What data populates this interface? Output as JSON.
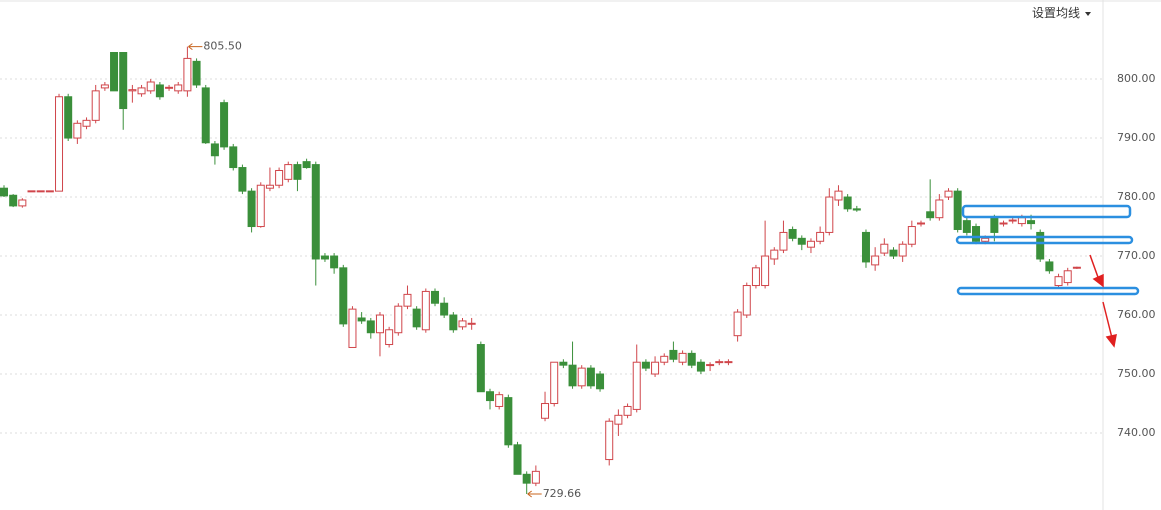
{
  "toolbar": {
    "button": "设置均线"
  },
  "chart_data": {
    "type": "candlestick",
    "open": [
      781.5,
      780.3,
      778.5,
      781,
      781,
      781,
      781,
      797,
      790,
      792,
      793,
      798.5,
      804.5,
      804.5,
      798,
      797.5,
      798,
      799,
      798.5,
      798,
      798,
      803,
      798.5,
      789,
      796,
      788.5,
      785,
      781,
      775,
      781.5,
      782,
      783,
      785.5,
      786,
      785.5,
      770,
      770,
      768,
      754.5,
      759.5,
      759,
      757,
      755,
      757,
      761.5,
      761,
      757.5,
      764,
      762,
      760,
      758,
      758.5,
      755,
      747,
      744.5,
      746,
      738,
      733,
      731.5,
      742.5,
      745,
      752,
      751.5,
      748,
      751,
      750,
      735.5,
      741.5,
      743,
      744,
      752,
      750,
      752,
      754,
      752,
      753.5,
      752,
      751.5,
      752,
      752,
      756.5,
      760,
      765,
      765,
      769.5,
      771,
      774.5,
      773,
      771.5,
      772.5,
      774,
      779.5,
      780,
      778,
      774,
      768.5,
      770.5,
      771,
      770,
      772,
      775.5,
      777.5,
      776.5,
      780,
      781,
      776,
      775,
      772.5,
      776.5,
      775.5,
      776,
      775.5,
      776,
      774,
      769,
      765,
      765.5,
      768
    ],
    "high": [
      782,
      780.5,
      779.8,
      781.1,
      781.1,
      781.1,
      797.5,
      797.5,
      793,
      793.5,
      799,
      799.5,
      804.5,
      804.5,
      799,
      799,
      800,
      799.5,
      799,
      799.5,
      805.5,
      803.5,
      799,
      789.5,
      796.5,
      789,
      785.5,
      781.5,
      782.5,
      785,
      785,
      786,
      786,
      786.5,
      786,
      770.5,
      770.5,
      768.5,
      761.5,
      760.5,
      759.5,
      760.5,
      758,
      762,
      765,
      761.5,
      764.5,
      764.5,
      763,
      760.5,
      759.5,
      759.5,
      755.5,
      747.5,
      747,
      746.5,
      738.5,
      733.5,
      734.5,
      747,
      752,
      752.5,
      755.5,
      751.5,
      751.5,
      750.5,
      742.5,
      744,
      745,
      755,
      752.5,
      753,
      753.5,
      755.5,
      754,
      754,
      752.5,
      752,
      752.5,
      752.5,
      761,
      765.5,
      768.5,
      776,
      771.5,
      776,
      775,
      773.5,
      773,
      775,
      781.5,
      782,
      780.5,
      778.5,
      774.5,
      771.5,
      773,
      771.5,
      772.5,
      776,
      776,
      783,
      780.5,
      781.5,
      781.5,
      776.5,
      775.5,
      773.5,
      777,
      776,
      776.5,
      777,
      777,
      774.5,
      769.5,
      767,
      768,
      768.2
    ],
    "low": [
      780,
      778.3,
      778.2,
      780.9,
      780.9,
      780.9,
      781,
      789.5,
      789,
      791.5,
      792.5,
      798,
      798,
      791.4,
      796,
      797,
      797.5,
      796.5,
      798,
      797.5,
      797,
      798.5,
      789,
      785.5,
      788,
      784.5,
      780.5,
      774,
      774.8,
      781,
      781.5,
      782.5,
      781,
      784.8,
      765,
      769,
      767,
      758,
      754.5,
      758.5,
      756,
      753,
      754.5,
      756.5,
      761,
      757.5,
      757,
      761.5,
      759.5,
      757,
      757.5,
      757.5,
      747,
      744,
      744,
      737.5,
      733,
      729.66,
      731,
      742,
      744.5,
      751,
      747.5,
      747.5,
      747.5,
      747,
      734.5,
      739.5,
      742.5,
      743.5,
      750.5,
      749.5,
      751.5,
      752,
      751.5,
      751,
      750,
      750.5,
      751.5,
      751.5,
      755.5,
      759.5,
      764.5,
      764.5,
      768.5,
      770.5,
      772.5,
      771,
      770.5,
      772,
      773.5,
      778.5,
      777.5,
      777.5,
      768,
      767.5,
      770,
      769.5,
      769,
      771.5,
      775,
      776,
      776,
      779.5,
      774,
      773.5,
      772,
      772,
      772.5,
      775,
      775.5,
      775,
      774.5,
      769,
      767,
      764.5,
      765,
      767.8
    ],
    "close": [
      780.2,
      778.5,
      779.5,
      781.05,
      781.05,
      781.05,
      797,
      790,
      792.5,
      793,
      798,
      799,
      798,
      795,
      798.2,
      798.5,
      799.5,
      797,
      798.6,
      799,
      803.5,
      799,
      789.2,
      787,
      788.5,
      785,
      781,
      775,
      782,
      782,
      784.5,
      785.5,
      783,
      785,
      769.5,
      769.5,
      768,
      758.5,
      761,
      759,
      757,
      760,
      757.5,
      761.5,
      763.5,
      758,
      764,
      762,
      760,
      757.5,
      759,
      758.6,
      747,
      745.5,
      746.5,
      738,
      733,
      731.5,
      733.5,
      745,
      752,
      751.5,
      748,
      751,
      748,
      747.5,
      742,
      743,
      744.5,
      752,
      751,
      752,
      753,
      752.5,
      753.5,
      751.5,
      750.5,
      751.6,
      752.1,
      752.1,
      760.5,
      765,
      768,
      770,
      771,
      774,
      773,
      772,
      772.5,
      774,
      780,
      781,
      778,
      777.8,
      769,
      770,
      772,
      770,
      772,
      775,
      775.6,
      776.5,
      779.5,
      781,
      774.5,
      774,
      772.5,
      773,
      774,
      775.6,
      776.1,
      776.5,
      775.5,
      769.5,
      767.5,
      766.5,
      767.5,
      768.1
    ],
    "up_color": "#d0454a",
    "down_color": "#3a8f3a",
    "high_label": "805.50",
    "low_label": "729.66",
    "annotation_color": "#c8641e",
    "ylim": [
      726.95,
      813.4
    ],
    "yticks": [
      {
        "value": 740,
        "label": "740.00"
      },
      {
        "value": 750,
        "label": "750.00"
      },
      {
        "value": 760,
        "label": "760.00"
      },
      {
        "value": 770,
        "label": "770.00"
      },
      {
        "value": 780,
        "label": "780.00"
      },
      {
        "value": 790,
        "label": "790.00"
      },
      {
        "value": 800,
        "label": "800.00"
      }
    ],
    "grid": true
  }
}
